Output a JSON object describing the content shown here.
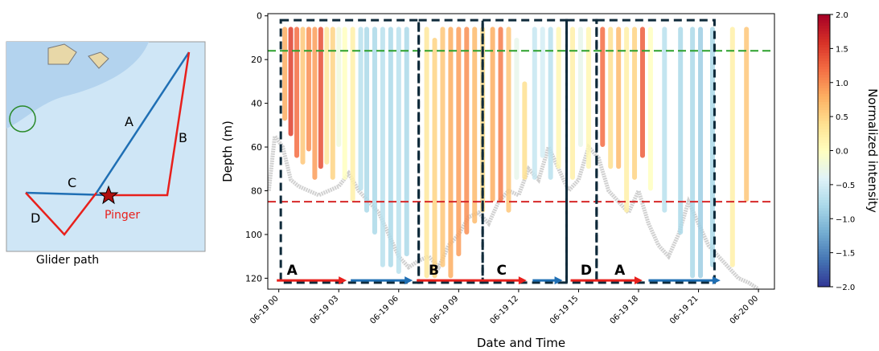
{
  "map": {
    "caption": "Glider path",
    "legs": [
      "A",
      "B",
      "C",
      "D"
    ],
    "pinger": "Pinger"
  },
  "chart_data": {
    "type": "profiles",
    "x_label": "Date and Time",
    "y_label": "Depth (m)",
    "colorbar_label": "Normalized intensity",
    "xlim": [
      -0.55,
      24.8
    ],
    "ylim": [
      125,
      -1
    ],
    "xticks": [
      {
        "value": 0,
        "label": "06-19 00"
      },
      {
        "value": 3,
        "label": "06-19 03"
      },
      {
        "value": 6,
        "label": "06-19 06"
      },
      {
        "value": 9,
        "label": "06-19 09"
      },
      {
        "value": 12,
        "label": "06-19 12"
      },
      {
        "value": 15,
        "label": "06-19 15"
      },
      {
        "value": 18,
        "label": "06-19 18"
      },
      {
        "value": 21,
        "label": "06-19 21"
      },
      {
        "value": 24,
        "label": "06-20 00"
      }
    ],
    "yticks": [
      0,
      20,
      40,
      60,
      80,
      100,
      120
    ],
    "clim": [
      -2,
      2
    ],
    "cticks": [
      {
        "value": 2,
        "label": "2.0"
      },
      {
        "value": 1.5,
        "label": "1.5"
      },
      {
        "value": 1,
        "label": "1.0"
      },
      {
        "value": 0.5,
        "label": "0.5"
      },
      {
        "value": 0,
        "label": "0.0"
      },
      {
        "value": -0.5,
        "label": "−0.5"
      },
      {
        "value": -1,
        "label": "−1.0"
      },
      {
        "value": -1.5,
        "label": "−1.5"
      },
      {
        "value": -2,
        "label": "−2.0"
      }
    ],
    "cmap": [
      "#313695",
      "#4575b4",
      "#74add1",
      "#abd9e9",
      "#e0f3f8",
      "#ffffbf",
      "#fee090",
      "#fdae61",
      "#f46d43",
      "#d73027",
      "#a50026"
    ],
    "hlines": [
      {
        "value": 16,
        "color": "#2ca02c"
      },
      {
        "value": 85,
        "color": "#d62728"
      }
    ],
    "boxes": [
      [
        0.1,
        7.0
      ],
      [
        7.0,
        10.2
      ],
      [
        10.2,
        14.4
      ],
      [
        14.4,
        15.9
      ],
      [
        15.9,
        21.8
      ]
    ],
    "box_depth": [
      2,
      122
    ],
    "segments": [
      {
        "start": -0.1,
        "end": 3.4,
        "color": "#e8201c"
      },
      {
        "start": 3.6,
        "end": 6.7,
        "color": "#1f6fb4"
      },
      {
        "start": 6.9,
        "end": 12.4,
        "color": "#e8201c"
      },
      {
        "start": 12.7,
        "end": 14.2,
        "color": "#1f6fb4"
      },
      {
        "start": 14.6,
        "end": 18.2,
        "color": "#e8201c"
      },
      {
        "start": 18.5,
        "end": 22.1,
        "color": "#1f6fb4"
      }
    ],
    "segment_depth": 121,
    "segment_labels": [
      {
        "text": "A",
        "x": 0.4
      },
      {
        "text": "B",
        "x": 7.5
      },
      {
        "text": "C",
        "x": 10.9
      },
      {
        "text": "D",
        "x": 15.1
      },
      {
        "text": "A",
        "x": 16.8
      }
    ],
    "profiles": {
      "x": [
        0.3,
        0.6,
        0.9,
        1.2,
        1.5,
        1.8,
        2.1,
        2.4,
        2.7,
        3.0,
        3.3,
        3.7,
        4.1,
        4.4,
        4.8,
        5.2,
        5.6,
        6.0,
        6.4,
        7.4,
        7.8,
        8.2,
        8.6,
        9.0,
        9.4,
        9.8,
        10.2,
        10.7,
        11.1,
        11.5,
        11.9,
        12.3,
        12.8,
        13.2,
        13.6,
        14.0,
        14.7,
        15.1,
        15.5,
        16.2,
        16.6,
        17.0,
        17.4,
        17.8,
        18.2,
        18.6,
        19.3,
        20.1,
        20.7,
        21.1,
        21.7,
        22.7,
        23.4
      ],
      "top": [
        5,
        5,
        5,
        5,
        5,
        5,
        5,
        5,
        5,
        5,
        5,
        5,
        5,
        5,
        5,
        5,
        5,
        5,
        5,
        5,
        10,
        5,
        5,
        5,
        5,
        5,
        5,
        5,
        5,
        5,
        10,
        30,
        5,
        5,
        5,
        5,
        5,
        5,
        5,
        5,
        5,
        5,
        5,
        5,
        5,
        5,
        5,
        5,
        5,
        5,
        5,
        5,
        5
      ],
      "bottom": [
        48,
        55,
        65,
        68,
        62,
        75,
        70,
        68,
        75,
        60,
        75,
        85,
        80,
        90,
        100,
        115,
        115,
        118,
        110,
        120,
        120,
        115,
        120,
        110,
        100,
        95,
        90,
        85,
        85,
        90,
        75,
        75,
        75,
        65,
        75,
        70,
        75,
        60,
        70,
        60,
        70,
        70,
        90,
        75,
        65,
        80,
        90,
        100,
        120,
        120,
        115,
        115,
        85
      ],
      "intensity": [
        0.8,
        1.5,
        1.2,
        0.6,
        1.0,
        0.9,
        1.4,
        0.3,
        0.5,
        -0.2,
        0.0,
        0.2,
        -0.7,
        -0.8,
        -0.8,
        -0.7,
        -0.8,
        -0.7,
        -0.8,
        0.3,
        0.5,
        0.6,
        0.8,
        0.9,
        1.0,
        0.7,
        0.4,
        0.8,
        1.1,
        0.6,
        -0.3,
        0.4,
        -0.6,
        -0.5,
        -0.7,
        0.1,
        0.2,
        -0.3,
        0.1,
        1.2,
        0.4,
        0.7,
        0.2,
        0.5,
        1.3,
        0.0,
        -0.7,
        -0.8,
        -0.8,
        -0.9,
        -0.8,
        0.2,
        0.6
      ]
    },
    "bottom_line": {
      "x": [
        -0.5,
        -0.2,
        0.2,
        0.6,
        1,
        2,
        3,
        3.5,
        4,
        4.5,
        5,
        5.5,
        6,
        6.5,
        7,
        7.5,
        8,
        8.5,
        9,
        9.5,
        10,
        10.5,
        11,
        11.5,
        12,
        12.5,
        13,
        13.5,
        14,
        14.5,
        15,
        15.5,
        16,
        16.5,
        17,
        17.5,
        18,
        18.5,
        19,
        19.5,
        20,
        20.5,
        21,
        21.5,
        22,
        22.5,
        23,
        23.5,
        24
      ],
      "y": [
        80,
        55,
        60,
        75,
        78,
        82,
        78,
        72,
        80,
        85,
        90,
        100,
        110,
        115,
        112,
        110,
        115,
        105,
        100,
        92,
        90,
        95,
        85,
        80,
        82,
        70,
        75,
        60,
        70,
        80,
        75,
        60,
        65,
        80,
        85,
        90,
        80,
        95,
        105,
        110,
        100,
        85,
        95,
        105,
        110,
        115,
        120,
        122,
        125
      ]
    }
  }
}
